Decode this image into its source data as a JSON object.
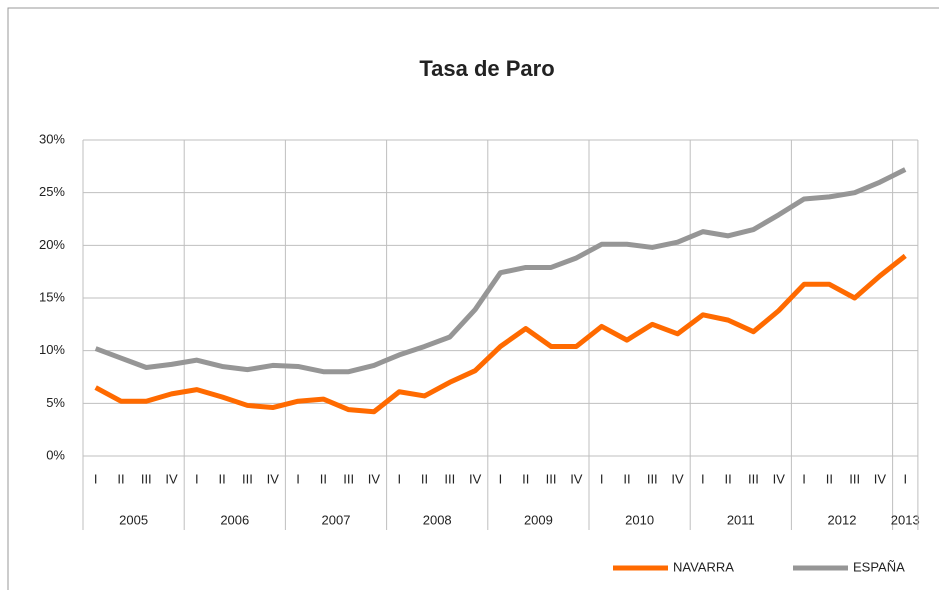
{
  "chart_data": {
    "type": "line",
    "title": "Tasa de Paro",
    "categories": [
      "I",
      "II",
      "III",
      "IV",
      "I",
      "II",
      "III",
      "IV",
      "I",
      "II",
      "III",
      "IV",
      "I",
      "II",
      "III",
      "IV",
      "I",
      "II",
      "III",
      "IV",
      "I",
      "II",
      "III",
      "IV",
      "I",
      "II",
      "III",
      "IV",
      "I",
      "II",
      "III",
      "IV",
      "I"
    ],
    "years": [
      "2005",
      "2006",
      "2007",
      "2008",
      "2009",
      "2010",
      "2011",
      "2012",
      "2013"
    ],
    "series": [
      {
        "name": "NAVARRA",
        "color": "#ff6a00",
        "values": [
          6.5,
          5.2,
          5.2,
          5.9,
          6.3,
          5.6,
          4.8,
          4.6,
          5.2,
          5.4,
          4.4,
          4.2,
          6.1,
          5.7,
          7.0,
          8.1,
          10.4,
          12.1,
          10.4,
          10.4,
          12.3,
          11.0,
          12.5,
          11.6,
          13.4,
          12.9,
          11.8,
          13.8,
          16.3,
          16.3,
          15.0,
          17.1,
          19.0
        ]
      },
      {
        "name": "ESPAÑA",
        "color": "#969696",
        "values": [
          10.2,
          9.3,
          8.4,
          8.7,
          9.1,
          8.5,
          8.2,
          8.6,
          8.5,
          8.0,
          8.0,
          8.6,
          9.6,
          10.4,
          11.3,
          13.9,
          17.4,
          17.9,
          17.9,
          18.8,
          20.1,
          20.1,
          19.8,
          20.3,
          21.3,
          20.9,
          21.5,
          22.9,
          24.4,
          24.6,
          25.0,
          26.0,
          27.2
        ]
      }
    ],
    "ylim": [
      0,
      30
    ],
    "yticks": [
      {
        "value": 0,
        "label": "0%"
      },
      {
        "value": 5,
        "label": "5%"
      },
      {
        "value": 10,
        "label": "10%"
      },
      {
        "value": 15,
        "label": "15%"
      },
      {
        "value": 20,
        "label": "20%"
      },
      {
        "value": 25,
        "label": "25%"
      },
      {
        "value": 30,
        "label": "30%"
      }
    ],
    "grid": true,
    "legend": "bottom-right"
  }
}
